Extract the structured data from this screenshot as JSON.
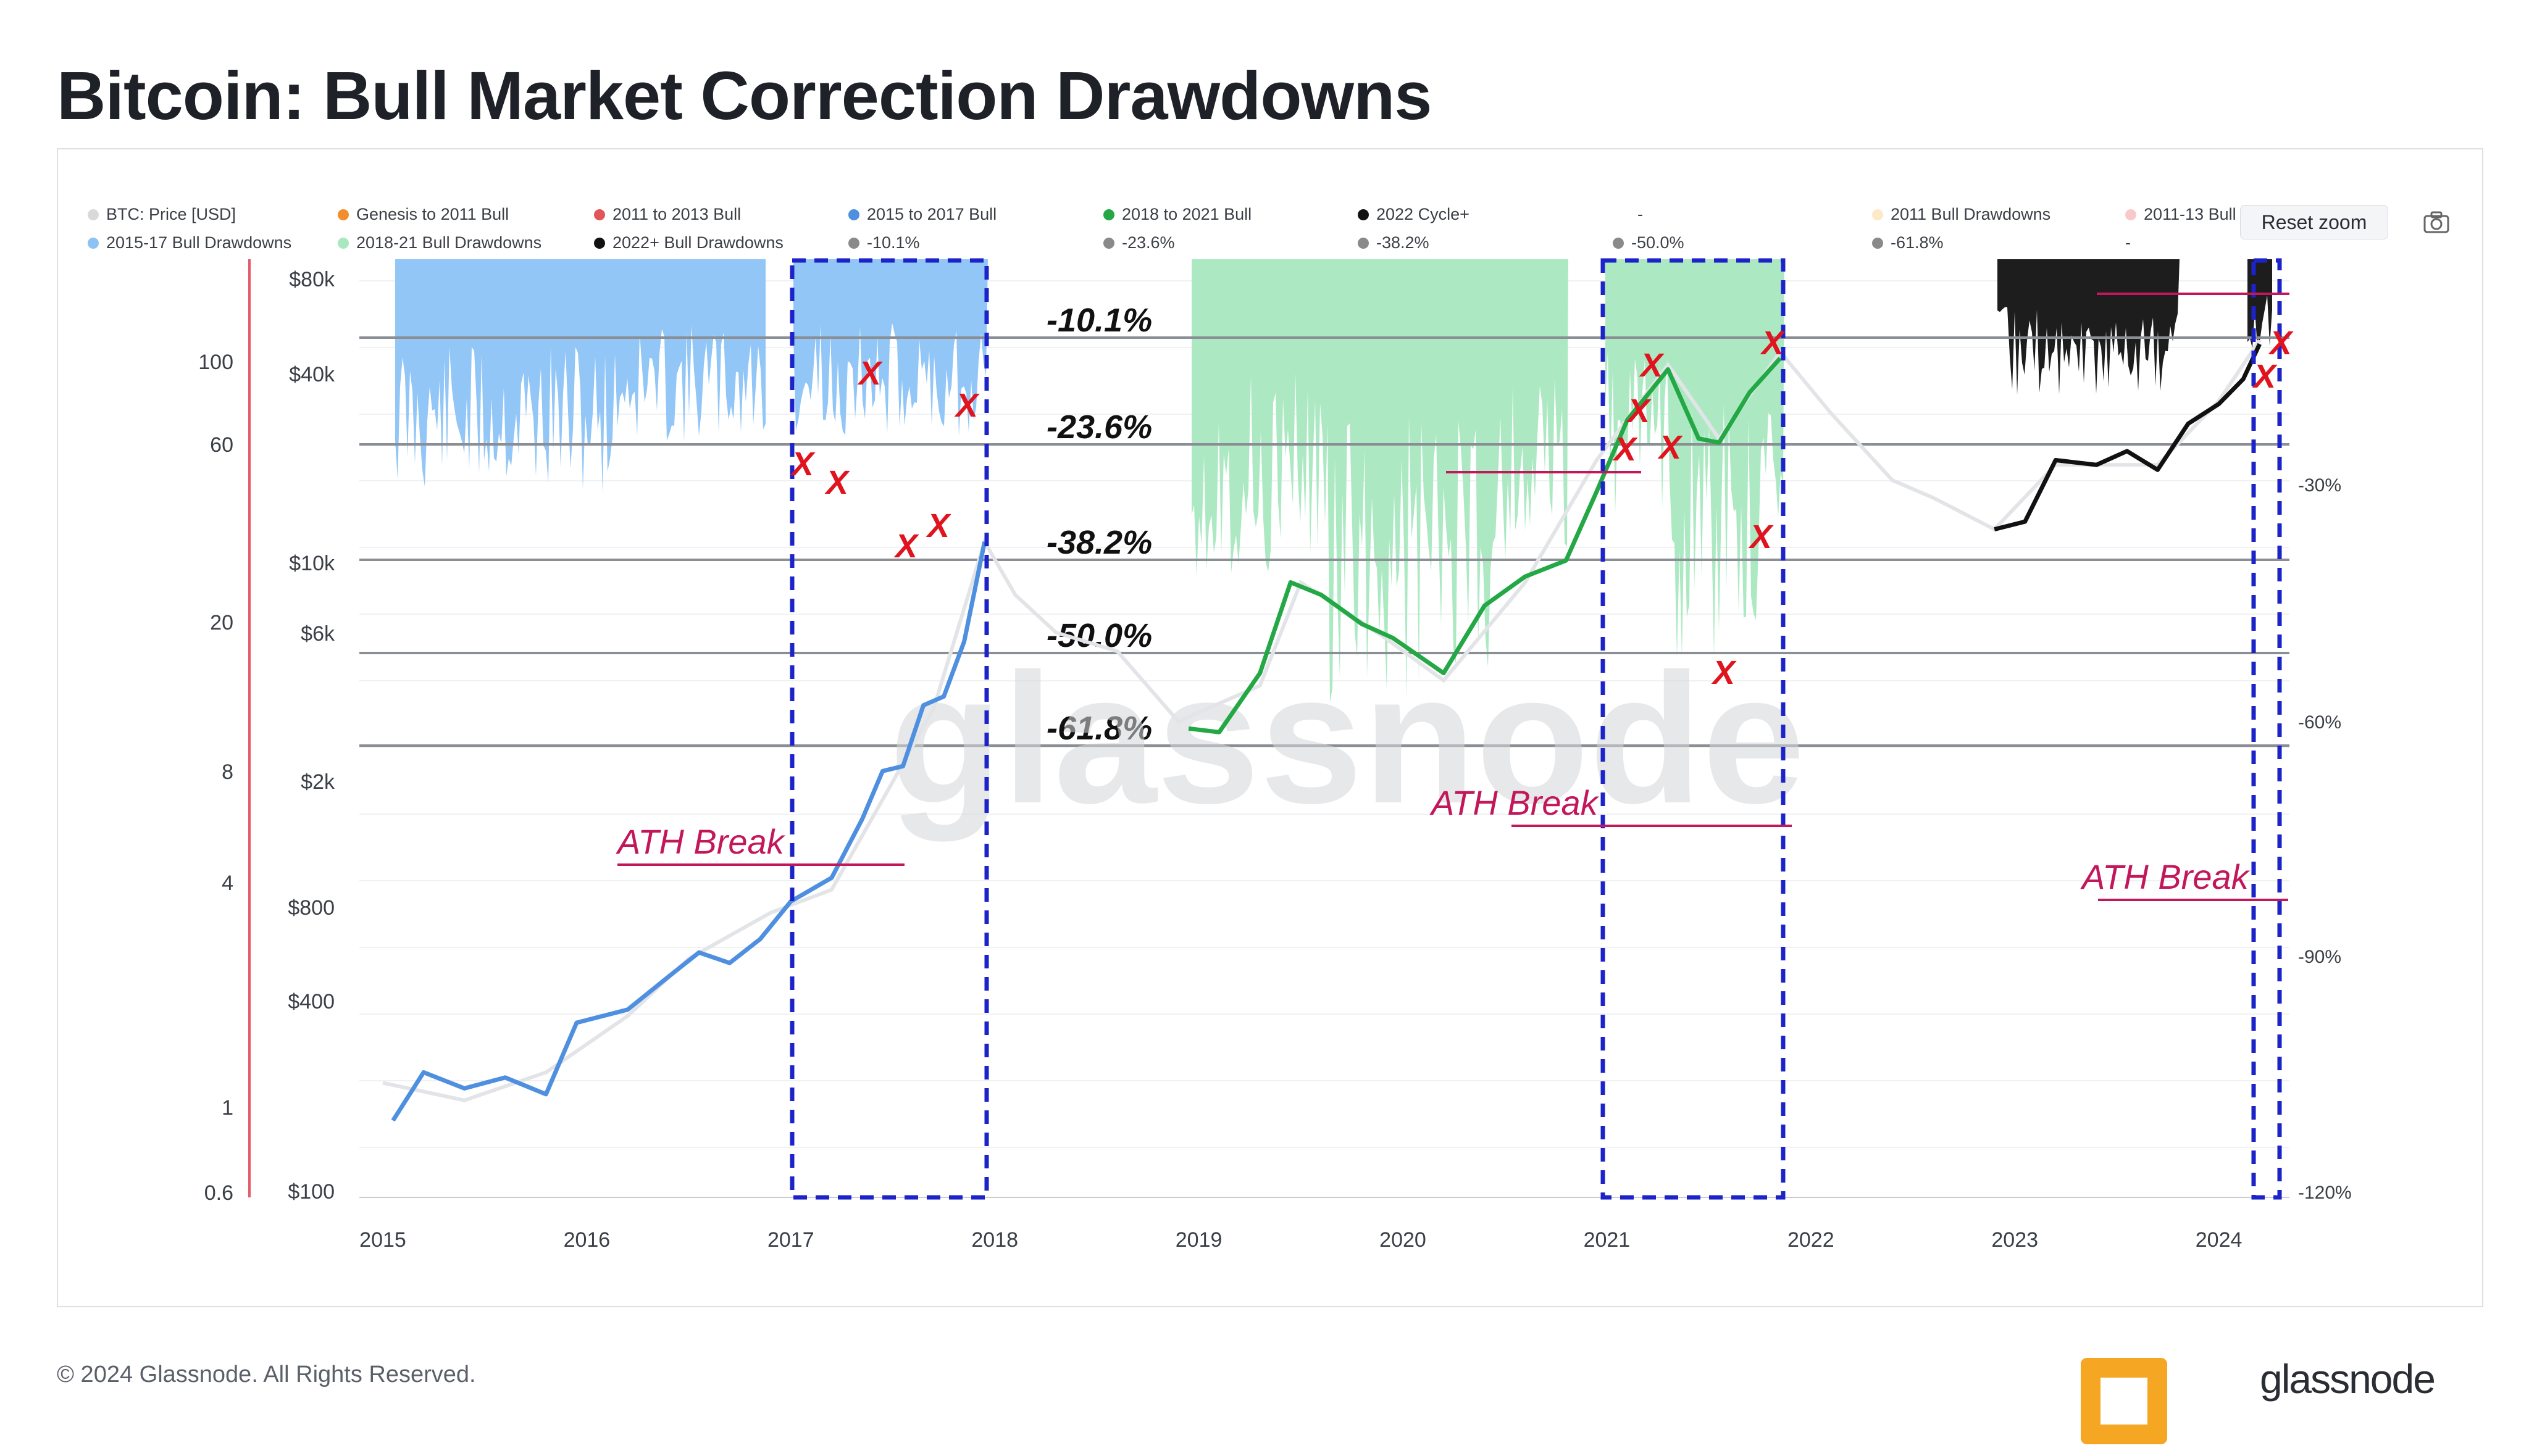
{
  "title": "Bitcoin: Bull Market Correction Drawdowns",
  "footer": "© 2024 Glassnode. All Rights Reserved.",
  "reset_zoom": "Reset zoom",
  "brand_bottom": "glassnode",
  "legend": [
    {
      "label": "BTC: Price [USD]",
      "color": "#d9d9d9"
    },
    {
      "label": "Genesis to 2011 Bull",
      "color": "#f28e2b"
    },
    {
      "label": "2011 to 2013 Bull",
      "color": "#e15759"
    },
    {
      "label": "2015 to 2017 Bull",
      "color": "#4e8fe0"
    },
    {
      "label": "2018 to 2021 Bull",
      "color": "#23a845"
    },
    {
      "label": "2022 Cycle+",
      "color": "#111111"
    },
    {
      "label": "-",
      "color": ""
    },
    {
      "label": "2011 Bull Drawdowns",
      "color": "#fde9c8"
    },
    {
      "label": "2011-13 Bull",
      "color": "#f9c9c9"
    },
    {
      "label": "2015-17 Bull Drawdowns",
      "color": "#8cc3f5"
    },
    {
      "label": "2018-21 Bull Drawdowns",
      "color": "#a8e8c0"
    },
    {
      "label": "2022+ Bull Drawdowns",
      "color": "#111111"
    },
    {
      "label": "-10.1%",
      "color": "#8a8a8a"
    },
    {
      "label": "-23.6%",
      "color": "#8a8a8a"
    },
    {
      "label": "-38.2%",
      "color": "#8a8a8a"
    },
    {
      "label": "-50.0%",
      "color": "#8a8a8a"
    },
    {
      "label": "-61.8%",
      "color": "#8a8a8a"
    },
    {
      "label": "-",
      "color": ""
    }
  ],
  "chart_data": {
    "type": "line",
    "x_ticks": [
      "2015",
      "2016",
      "2017",
      "2018",
      "2019",
      "2020",
      "2021",
      "2022",
      "2023",
      "2024"
    ],
    "left_outer_ticks": [
      "100",
      "60",
      "20",
      "8",
      "4",
      "1",
      "0.6"
    ],
    "price_ticks": [
      "$80k",
      "$40k",
      "$10k",
      "$6k",
      "$2k",
      "$800",
      "$400",
      "$100"
    ],
    "right_ticks": [
      "-30%",
      "-60%",
      "-90%",
      "-120%"
    ],
    "fib_levels": [
      {
        "label": "-10.1%",
        "value": -10.1
      },
      {
        "label": "-23.6%",
        "value": -23.6
      },
      {
        "label": "-38.2%",
        "value": -38.2
      },
      {
        "label": "-50.0%",
        "value": -50.0
      },
      {
        "label": "-61.8%",
        "value": -61.8
      }
    ],
    "annotations": [
      "ATH Break",
      "ATH Break",
      "ATH Break"
    ],
    "x_marker": "X",
    "watermark": "glassnode",
    "series": [
      {
        "name": "2015 to 2017 Bull",
        "color": "#4e8fe0",
        "points": [
          [
            2015.05,
            180
          ],
          [
            2015.2,
            260
          ],
          [
            2015.4,
            230
          ],
          [
            2015.6,
            250
          ],
          [
            2015.8,
            220
          ],
          [
            2015.95,
            380
          ],
          [
            2016.2,
            420
          ],
          [
            2016.4,
            540
          ],
          [
            2016.55,
            650
          ],
          [
            2016.7,
            600
          ],
          [
            2016.85,
            720
          ],
          [
            2017.0,
            960
          ],
          [
            2017.2,
            1150
          ],
          [
            2017.35,
            1800
          ],
          [
            2017.45,
            2600
          ],
          [
            2017.55,
            2700
          ],
          [
            2017.65,
            4300
          ],
          [
            2017.75,
            4600
          ],
          [
            2017.85,
            7000
          ],
          [
            2017.95,
            15000
          ]
        ]
      },
      {
        "name": "2018 to 2021 Bull",
        "color": "#23a845",
        "points": [
          [
            2018.95,
            3600
          ],
          [
            2019.1,
            3500
          ],
          [
            2019.3,
            5500
          ],
          [
            2019.45,
            11000
          ],
          [
            2019.6,
            10000
          ],
          [
            2019.8,
            8000
          ],
          [
            2019.95,
            7200
          ],
          [
            2020.2,
            5500
          ],
          [
            2020.4,
            9200
          ],
          [
            2020.6,
            11500
          ],
          [
            2020.8,
            13000
          ],
          [
            2020.95,
            22000
          ],
          [
            2021.1,
            38000
          ],
          [
            2021.3,
            56000
          ],
          [
            2021.45,
            33000
          ],
          [
            2021.55,
            32000
          ],
          [
            2021.7,
            47000
          ],
          [
            2021.85,
            61000
          ]
        ]
      },
      {
        "name": "2022 Cycle+",
        "color": "#111111",
        "points": [
          [
            2022.9,
            16500
          ],
          [
            2023.05,
            17500
          ],
          [
            2023.2,
            28000
          ],
          [
            2023.4,
            27000
          ],
          [
            2023.55,
            30000
          ],
          [
            2023.7,
            26000
          ],
          [
            2023.85,
            37000
          ],
          [
            2024.0,
            43000
          ],
          [
            2024.12,
            52000
          ],
          [
            2024.2,
            68000
          ]
        ]
      }
    ]
  }
}
